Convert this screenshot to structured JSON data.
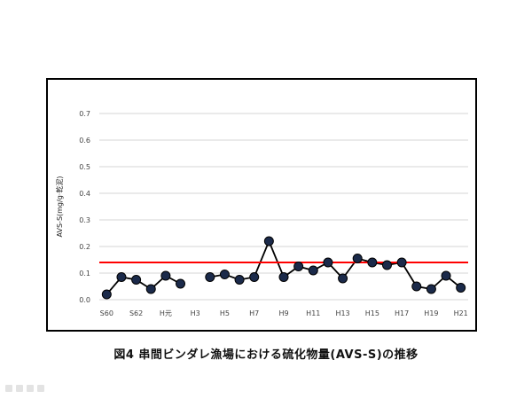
{
  "caption": "図4  串間ビンダレ漁場における硫化物量(AVS-S)の推移",
  "chart_data": {
    "type": "line",
    "title": "",
    "xlabel": "",
    "ylabel": "AVS-S(mg/g·乾泥)",
    "ylim": [
      0.0,
      0.7
    ],
    "ytick_step": 0.1,
    "y_ticks": [
      "0.0",
      "0.1",
      "0.2",
      "0.3",
      "0.4",
      "0.5",
      "0.6",
      "0.7"
    ],
    "grid": true,
    "legend": "none",
    "categories": [
      "S60",
      "S61",
      "S62",
      "S63",
      "H元",
      "H2",
      "H3",
      "H4",
      "H5",
      "H6",
      "H7",
      "H8",
      "H9",
      "H10",
      "H11",
      "H12",
      "H13",
      "H14",
      "H15",
      "H16",
      "H17",
      "H18",
      "H19",
      "H20",
      "H21"
    ],
    "x_tick_labels": [
      "S60",
      "",
      "S62",
      "",
      "H元",
      "",
      "H3",
      "",
      "H5",
      "",
      "H7",
      "",
      "H9",
      "",
      "H11",
      "",
      "H13",
      "",
      "H15",
      "",
      "H17",
      "",
      "H19",
      "",
      "H21"
    ],
    "series": [
      {
        "values": [
          0.02,
          0.085,
          0.075,
          0.04,
          0.09,
          0.06,
          null,
          0.085,
          0.095,
          0.075,
          0.085,
          0.22,
          0.085,
          0.125,
          0.11,
          0.14,
          0.08,
          0.155,
          0.14,
          0.13,
          0.14,
          0.05,
          0.04,
          0.09,
          0.045
        ],
        "color": "#000000",
        "marker_color": "#1b2a4a"
      }
    ],
    "reference_line": {
      "value": 0.14,
      "color": "#ff0000"
    },
    "grid_color": "#c8c8c8"
  }
}
